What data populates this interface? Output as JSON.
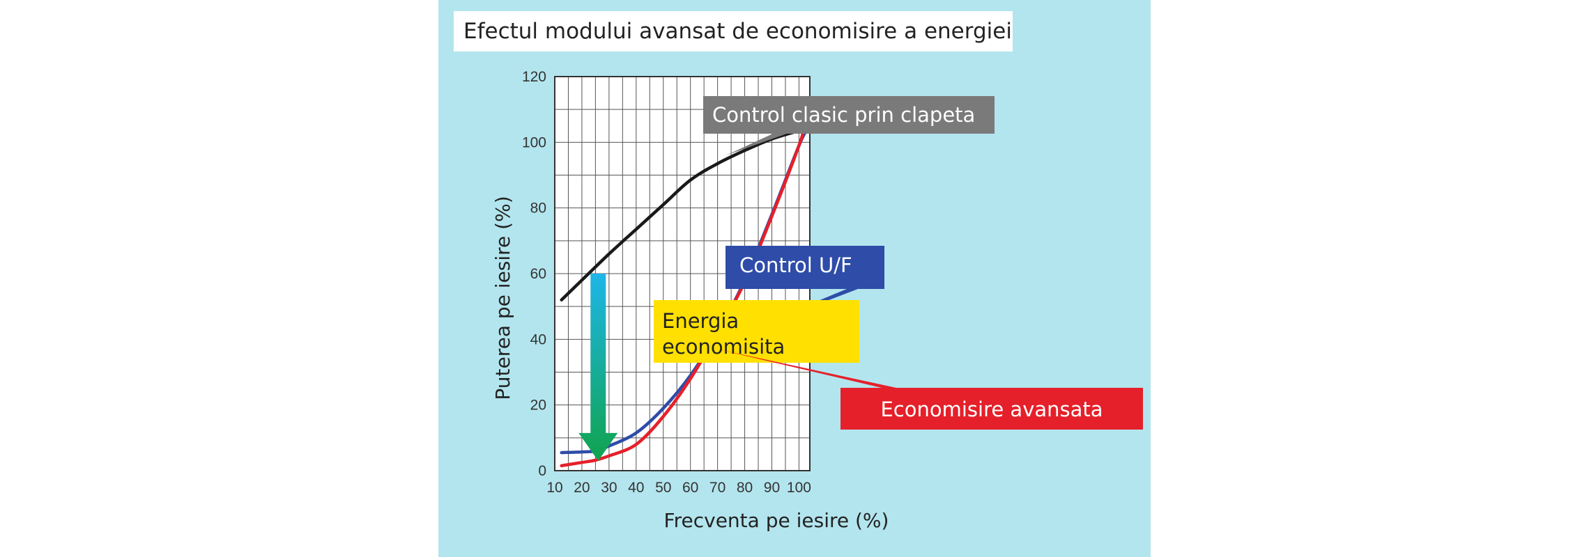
{
  "chart_data": {
    "type": "line",
    "title": "Efectul modului avansat de economisire a energiei",
    "xlabel": "Frecventa pe iesire (%)",
    "ylabel": "Puterea pe iesire (%)",
    "xlim": [
      10,
      104
    ],
    "ylim": [
      0,
      120
    ],
    "xticks": [
      10,
      20,
      30,
      40,
      50,
      60,
      70,
      80,
      90,
      100
    ],
    "yticks": [
      0,
      20,
      40,
      60,
      80,
      100,
      120
    ],
    "grid": true,
    "series": [
      {
        "name": "Control clasic prin clapeta",
        "color": "#1a1a1a",
        "points": [
          [
            12.5,
            52
          ],
          [
            20,
            58
          ],
          [
            30,
            66
          ],
          [
            40,
            73.5
          ],
          [
            50,
            81
          ],
          [
            60,
            88.5
          ],
          [
            70,
            93.5
          ],
          [
            80,
            97.5
          ],
          [
            90,
            101
          ],
          [
            100,
            103.5
          ],
          [
            103,
            104
          ]
        ]
      },
      {
        "name": "Control U/F",
        "color": "#2e4ca8",
        "points": [
          [
            12.5,
            5.5
          ],
          [
            20,
            5.7
          ],
          [
            25,
            6
          ],
          [
            30,
            7.5
          ],
          [
            40,
            11.5
          ],
          [
            50,
            19
          ],
          [
            60,
            29
          ],
          [
            70,
            42
          ],
          [
            80,
            58
          ],
          [
            90,
            78
          ],
          [
            100,
            99
          ],
          [
            103,
            104
          ]
        ]
      },
      {
        "name": "Economisire avansata",
        "color": "#e5202a",
        "points": [
          [
            12.5,
            1.5
          ],
          [
            20,
            2.5
          ],
          [
            25,
            3.2
          ],
          [
            30,
            4.5
          ],
          [
            40,
            8
          ],
          [
            50,
            16.5
          ],
          [
            60,
            28
          ],
          [
            70,
            42
          ],
          [
            80,
            57.5
          ],
          [
            90,
            77.5
          ],
          [
            100,
            99
          ],
          [
            102.5,
            106
          ]
        ]
      }
    ],
    "annotations": [
      {
        "text_lines": [
          "Control clasic prin clapeta"
        ],
        "background": "#7a7a7a",
        "text_color": "#ffffff",
        "points_to": [
          73,
          96
        ]
      },
      {
        "text_lines": [
          "Control U/F"
        ],
        "background": "#2e4ca8",
        "text_color": "#ffffff",
        "points_to": [
          67,
          38
        ]
      },
      {
        "text_lines": [
          "Energia",
          "economisita"
        ],
        "background": "#ffe000",
        "text_color": "#222222"
      },
      {
        "text_lines": [
          "Economisire avansata"
        ],
        "background": "#e5202a",
        "text_color": "#ffffff",
        "points_to": [
          70,
          37
        ]
      }
    ],
    "arrow": {
      "x": 26,
      "from_y": 60,
      "to_y": 3,
      "color_top": "#1eb6e8",
      "color_bottom": "#10a34e"
    }
  }
}
